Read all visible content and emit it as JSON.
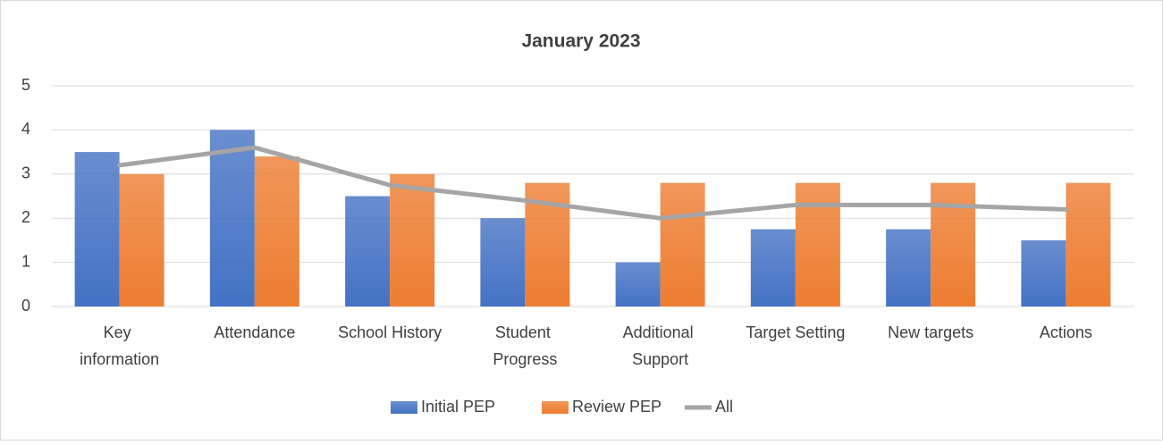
{
  "chart_data": {
    "type": "bar",
    "title": "January 2023",
    "categories": [
      "Key information",
      "Attendance",
      "School History",
      "Student Progress",
      "Additional Support",
      "Target Setting",
      "New targets",
      "Actions"
    ],
    "series": [
      {
        "name": "Initial PEP",
        "type": "bar",
        "color": "#4472c4",
        "values": [
          3.5,
          4,
          2.5,
          2,
          1,
          1.75,
          1.75,
          1.5
        ]
      },
      {
        "name": "Review PEP",
        "type": "bar",
        "color": "#ed7d31",
        "values": [
          3,
          3.4,
          3,
          2.8,
          2.8,
          2.8,
          2.8,
          2.8
        ]
      },
      {
        "name": "All",
        "type": "line",
        "color": "#a5a5a5",
        "values": [
          3.2,
          3.6,
          2.75,
          2.4,
          2,
          2.3,
          2.3,
          2.2
        ]
      }
    ],
    "ylim": [
      0,
      5
    ],
    "yticks": [
      0,
      1,
      2,
      3,
      4,
      5
    ],
    "grid": true,
    "legend": "bottom"
  }
}
